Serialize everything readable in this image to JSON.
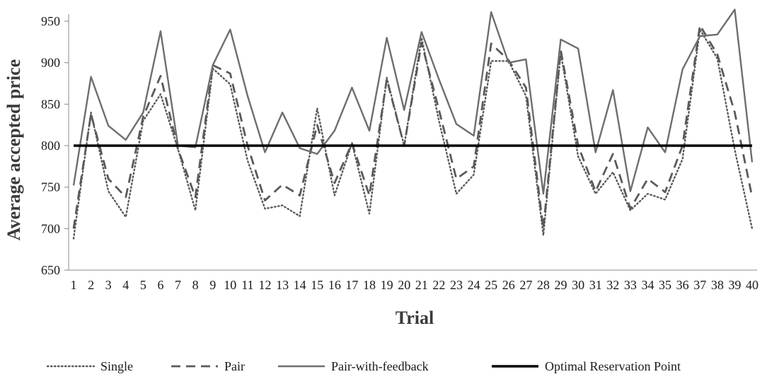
{
  "chart_data": {
    "type": "line",
    "xlabel": "Trial",
    "ylabel": "Average accepted price",
    "ylim": [
      650,
      950
    ],
    "yticks": [
      650,
      700,
      750,
      800,
      850,
      900,
      950
    ],
    "categories": [
      "1",
      "2",
      "3",
      "4",
      "5",
      "6",
      "7",
      "8",
      "9",
      "10",
      "11",
      "12",
      "13",
      "14",
      "15",
      "16",
      "17",
      "18",
      "19",
      "20",
      "21",
      "22",
      "23",
      "24",
      "25",
      "26",
      "27",
      "28",
      "29",
      "30",
      "31",
      "32",
      "33",
      "34",
      "35",
      "36",
      "37",
      "38",
      "39",
      "40"
    ],
    "legend_position": "bottom",
    "series": [
      {
        "name": "Single",
        "style": "dotted",
        "color": "#5a5a5a",
        "values": [
          688,
          840,
          745,
          714,
          830,
          862,
          796,
          722,
          893,
          874,
          782,
          724,
          728,
          715,
          845,
          740,
          803,
          718,
          882,
          800,
          930,
          830,
          742,
          765,
          902,
          902,
          860,
          692,
          912,
          787,
          742,
          768,
          722,
          742,
          735,
          784,
          940,
          905,
          795,
          700
        ]
      },
      {
        "name": "Pair",
        "style": "dashed",
        "color": "#5a5a5a",
        "values": [
          700,
          838,
          760,
          738,
          835,
          884,
          796,
          738,
          897,
          887,
          800,
          734,
          753,
          740,
          825,
          755,
          803,
          740,
          880,
          800,
          924,
          843,
          760,
          775,
          923,
          903,
          870,
          700,
          915,
          800,
          745,
          790,
          724,
          760,
          744,
          800,
          945,
          910,
          840,
          738
        ]
      },
      {
        "name": "Pair-with-feedback",
        "style": "solid",
        "color": "#6e6e6e",
        "values": [
          752,
          883,
          824,
          807,
          840,
          938,
          800,
          798,
          897,
          940,
          860,
          792,
          840,
          797,
          790,
          818,
          870,
          818,
          930,
          843,
          937,
          880,
          826,
          812,
          961,
          900,
          904,
          742,
          928,
          917,
          792,
          867,
          745,
          822,
          792,
          892,
          932,
          934,
          964,
          780
        ]
      },
      {
        "name": "Optimal Reservation Point",
        "style": "solid-thick",
        "color": "#000000",
        "values": [
          800,
          800,
          800,
          800,
          800,
          800,
          800,
          800,
          800,
          800,
          800,
          800,
          800,
          800,
          800,
          800,
          800,
          800,
          800,
          800,
          800,
          800,
          800,
          800,
          800,
          800,
          800,
          800,
          800,
          800,
          800,
          800,
          800,
          800,
          800,
          800,
          800,
          800,
          800,
          800
        ]
      }
    ]
  }
}
